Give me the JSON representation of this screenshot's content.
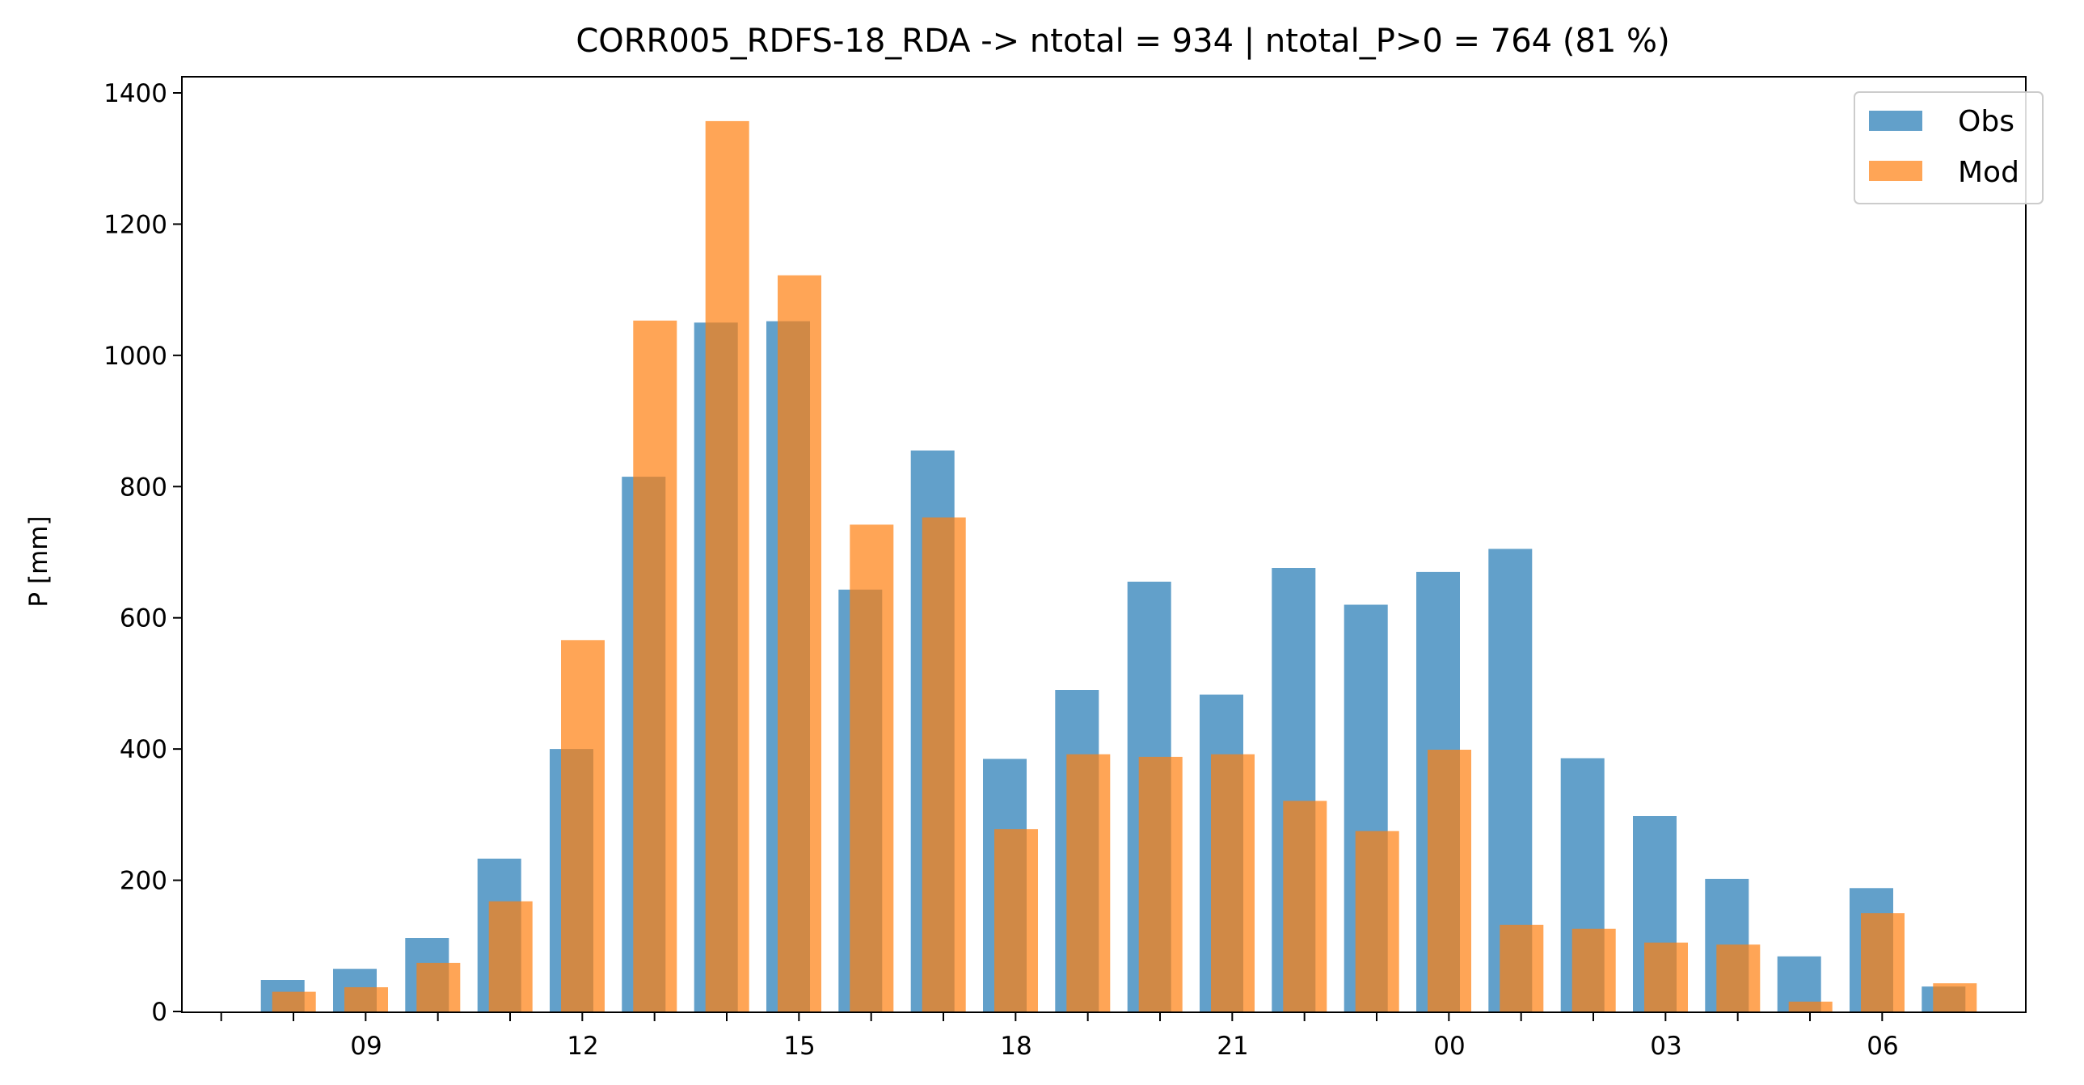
{
  "chart_data": {
    "type": "bar",
    "title": "CORR005_RDFS-18_RDA -> ntotal = 934 | ntotal_P>0 = 764 (81 %)",
    "xlabel": "",
    "ylabel": "P [mm]",
    "ylim": [
      0,
      1425
    ],
    "yticks": [
      0,
      200,
      400,
      600,
      800,
      1000,
      1200,
      1400
    ],
    "grid": false,
    "legend_position": "top-right",
    "hours": [
      "08",
      "09",
      "10",
      "11",
      "12",
      "13",
      "14",
      "15",
      "16",
      "17",
      "18",
      "19",
      "20",
      "21",
      "22",
      "23",
      "00",
      "01",
      "02",
      "03",
      "04",
      "05",
      "06",
      "07"
    ],
    "xtick_labels": [
      {
        "hour_index": 1,
        "label": "09"
      },
      {
        "hour_index": 4,
        "label": "12"
      },
      {
        "hour_index": 7,
        "label": "15"
      },
      {
        "hour_index": 10,
        "label": "18"
      },
      {
        "hour_index": 13,
        "label": "21"
      },
      {
        "hour_index": 16,
        "label": "00"
      },
      {
        "hour_index": 19,
        "label": "03"
      },
      {
        "hour_index": 22,
        "label": "06"
      }
    ],
    "series": [
      {
        "name": "Obs",
        "color": "#1f77b4",
        "opacity": 0.7,
        "values": [
          48,
          65,
          112,
          233,
          400,
          815,
          1050,
          1052,
          643,
          855,
          385,
          490,
          655,
          483,
          676,
          620,
          670,
          705,
          386,
          298,
          202,
          84,
          188,
          38
        ]
      },
      {
        "name": "Mod",
        "color": "#ff7f0e",
        "opacity": 0.7,
        "values": [
          30,
          37,
          74,
          168,
          566,
          1053,
          1357,
          1122,
          742,
          753,
          278,
          392,
          388,
          392,
          321,
          275,
          399,
          132,
          126,
          105,
          102,
          15,
          150,
          43
        ]
      }
    ]
  }
}
